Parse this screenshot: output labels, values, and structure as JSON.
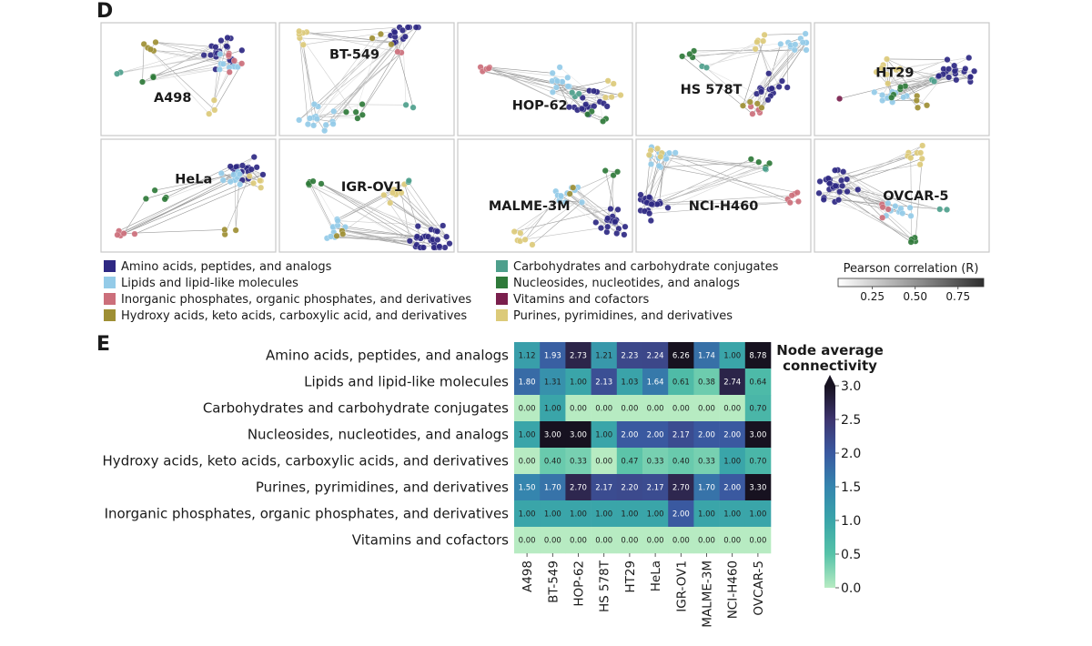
{
  "panels": {
    "d_letter": "D",
    "e_letter": "E"
  },
  "colors": {
    "amino": "#2e2883",
    "lipids": "#94cbe8",
    "inorganic": "#cc6f7b",
    "hydroxy": "#9e8f34",
    "carbohydrates": "#4e9f8c",
    "nucleosides": "#2f7a3a",
    "vitamins": "#7a1f4d",
    "purines": "#dcca79"
  },
  "networks": [
    {
      "label": "A498",
      "mix": {
        "amino": 22,
        "lipids": 8,
        "inorganic": 6,
        "hydroxy": 5,
        "nucleosides": 4,
        "purines": 3,
        "carbohydrates": 2
      }
    },
    {
      "label": "BT-549",
      "mix": {
        "amino": 14,
        "lipids": 14,
        "nucleosides": 5,
        "purines": 6,
        "hydroxy": 3,
        "inorganic": 2,
        "carbohydrates": 2
      }
    },
    {
      "label": "HOP-62",
      "mix": {
        "amino": 18,
        "lipids": 12,
        "inorganic": 5,
        "nucleosides": 4,
        "purines": 5,
        "carbohydrates": 3
      }
    },
    {
      "label": "HS 578T",
      "mix": {
        "amino": 14,
        "lipids": 12,
        "inorganic": 4,
        "hydroxy": 4,
        "nucleosides": 4,
        "purines": 5,
        "carbohydrates": 2
      }
    },
    {
      "label": "HT29",
      "mix": {
        "amino": 20,
        "lipids": 12,
        "purines": 8,
        "nucleosides": 5,
        "hydroxy": 4,
        "carbohydrates": 2,
        "vitamins": 1
      }
    },
    {
      "label": "HeLa",
      "mix": {
        "amino": 18,
        "lipids": 12,
        "inorganic": 5,
        "nucleosides": 4,
        "purines": 5,
        "hydroxy": 3
      }
    },
    {
      "label": "IGR-OV1",
      "mix": {
        "amino": 28,
        "lipids": 10,
        "purines": 8,
        "nucleosides": 5,
        "hydroxy": 3,
        "carbohydrates": 2
      }
    },
    {
      "label": "MALME-3M",
      "mix": {
        "amino": 18,
        "lipids": 12,
        "purines": 6,
        "nucleosides": 3,
        "hydroxy": 2
      }
    },
    {
      "label": "NCI-H460",
      "mix": {
        "amino": 22,
        "lipids": 14,
        "inorganic": 6,
        "nucleosides": 4,
        "purines": 5,
        "carbohydrates": 2
      }
    },
    {
      "label": "OVCAR-5",
      "mix": {
        "amino": 26,
        "lipids": 10,
        "purines": 8,
        "nucleosides": 4,
        "inorganic": 4,
        "carbohydrates": 2
      }
    }
  ],
  "class_legend": [
    {
      "key": "amino",
      "label": "Amino acids, peptides, and analogs"
    },
    {
      "key": "lipids",
      "label": "Lipids and lipid-like molecules"
    },
    {
      "key": "inorganic",
      "label": "Inorganic phosphates, organic phosphates, and derivatives"
    },
    {
      "key": "hydroxy",
      "label": "Hydroxy acids, keto acids, carboxylic acid, and derivatives"
    },
    {
      "key": "carbohydrates",
      "label": "Carbohydrates and carbohydrate conjugates"
    },
    {
      "key": "nucleosides",
      "label": "Nucleosides, nucleotides, and analogs"
    },
    {
      "key": "vitamins",
      "label": "Vitamins and cofactors"
    },
    {
      "key": "purines",
      "label": "Purines, pyrimidines, and derivatives"
    }
  ],
  "pearson_legend": {
    "title": "Pearson correlation (R)",
    "ticks": [
      "0.25",
      "0.50",
      "0.75"
    ],
    "tick_values": [
      0.25,
      0.5,
      0.75
    ],
    "range": [
      0.05,
      0.9
    ]
  },
  "chart_data": {
    "type": "heatmap",
    "title": "",
    "colorbar_title": [
      "Node average",
      "connectivity"
    ],
    "colorbar_range": [
      0,
      3.0
    ],
    "colorbar_ticks": [
      "0.0",
      "0.5",
      "1.0",
      "1.5",
      "2.0",
      "2.5",
      "3.0"
    ],
    "colorbar_tick_values": [
      0,
      0.5,
      1.0,
      1.5,
      2.0,
      2.5,
      3.0
    ],
    "columns": [
      "A498",
      "BT-549",
      "HOP-62",
      "HS 578T",
      "HT29",
      "HeLa",
      "IGR-OV1",
      "MALME-3M",
      "NCI-H460",
      "OVCAR-5"
    ],
    "rows": [
      "Amino acids, peptides, and analogs",
      "Lipids and lipid-like molecules",
      "Carbohydrates and carbohydrate conjugates",
      "Nucleosides, nucleotides, and analogs",
      "Hydroxy acids, keto acids, carboxylic acids, and derivatives",
      "Purines, pyrimidines, and derivatives",
      "Inorganic phosphates, organic phosphates, and derivatives",
      "Vitamins and cofactors"
    ],
    "values": [
      [
        1.12,
        1.93,
        2.73,
        1.21,
        2.23,
        2.24,
        6.26,
        1.74,
        1.0,
        8.78
      ],
      [
        1.8,
        1.31,
        1.0,
        2.13,
        1.03,
        1.64,
        0.61,
        0.38,
        2.74,
        0.64
      ],
      [
        0.0,
        1.0,
        0.0,
        0.0,
        0.0,
        0.0,
        0.0,
        0.0,
        0.0,
        0.7
      ],
      [
        1.0,
        3.0,
        3.0,
        1.0,
        2.0,
        2.0,
        2.17,
        2.0,
        2.0,
        3.0
      ],
      [
        0.0,
        0.4,
        0.33,
        0.0,
        0.47,
        0.33,
        0.4,
        0.33,
        1.0,
        0.7
      ],
      [
        1.5,
        1.7,
        2.7,
        2.17,
        2.2,
        2.17,
        2.7,
        1.7,
        2.0,
        3.3
      ],
      [
        1.0,
        1.0,
        1.0,
        1.0,
        1.0,
        1.0,
        2.0,
        1.0,
        1.0,
        1.0
      ],
      [
        0.0,
        0.0,
        0.0,
        0.0,
        0.0,
        0.0,
        0.0,
        0.0,
        0.0,
        0.0
      ]
    ]
  }
}
